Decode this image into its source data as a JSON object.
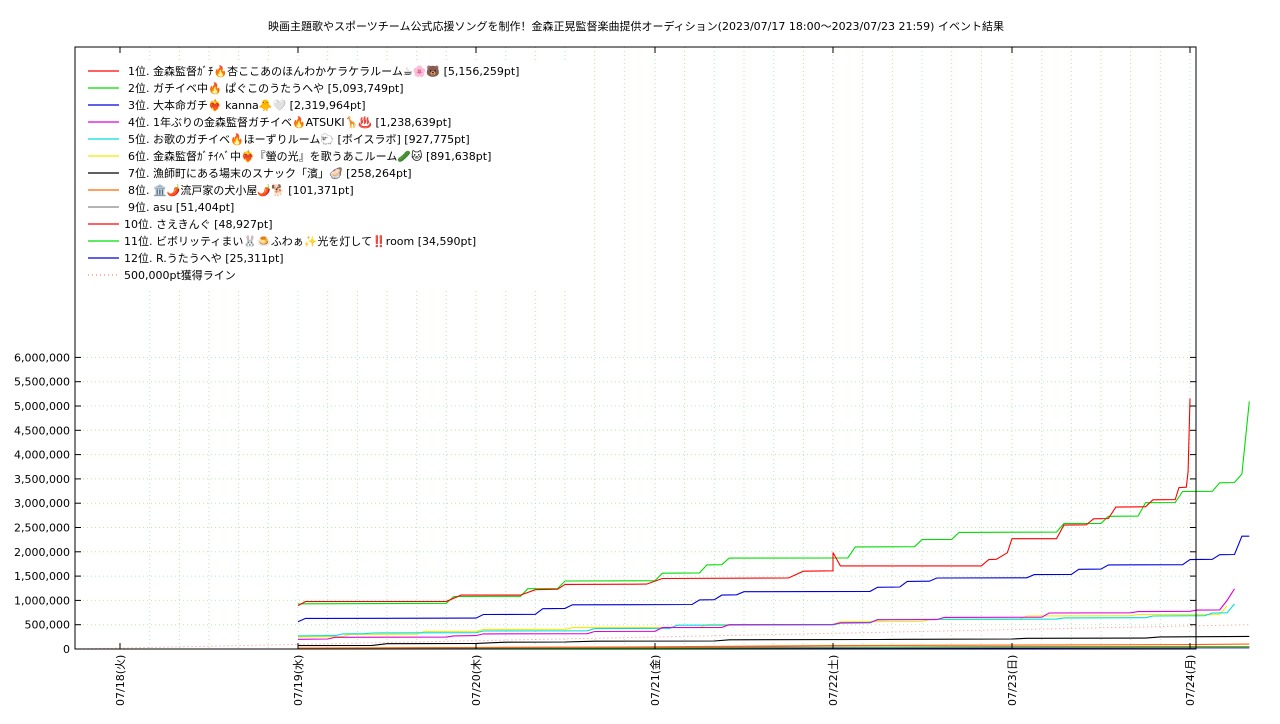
{
  "chart_data": {
    "type": "line",
    "title": "映画主題歌やスポーツチーム公式応援ソングを制作！金森正晃監督楽曲提供オーディション(2023/07/17 18:00～2023/07/23 21:59)",
    "subtitle": "イベント結果",
    "xlabel": "",
    "ylabel": "",
    "xlim": [
      "2023-07-17 18:00",
      "2023-07-24 02:00"
    ],
    "ylim": [
      0,
      6200000
    ],
    "x_ticks": [
      "07/18(火)",
      "07/19(水)",
      "07/20(木)",
      "07/21(金)",
      "07/22(土)",
      "07/23(日)",
      "07/24(月)"
    ],
    "y_ticks": [
      "0",
      "500,000",
      "1,000,000",
      "1,500,000",
      "2,000,000",
      "2,500,000",
      "3,000,000",
      "3,500,000",
      "4,000,000",
      "4,500,000",
      "5,000,000",
      "5,500,000",
      "6,000,000"
    ],
    "grid": true,
    "legend_position": "top-left",
    "series": [
      {
        "name": "1位. 金森監督ｶﾞﾁ🔥杏ここあのほんわかケラケラルーム☕🌸🐻 [5,156,259pt]",
        "color": "#ff0000",
        "points": [
          [
            "07/19 00:00",
            890000
          ],
          [
            "07/19 01:00",
            975000
          ],
          [
            "07/19 20:00",
            980000
          ],
          [
            "07/19 22:00",
            1110000
          ],
          [
            "07/20 06:00",
            1110000
          ],
          [
            "07/20 08:00",
            1220000
          ],
          [
            "07/20 11:00",
            1230000
          ],
          [
            "07/20 12:00",
            1330000
          ],
          [
            "07/20 23:00",
            1335000
          ],
          [
            "07/21 01:00",
            1450000
          ],
          [
            "07/21 18:00",
            1460000
          ],
          [
            "07/21 20:00",
            1600000
          ],
          [
            "07/22 00:00",
            1610000
          ],
          [
            "07/22 01:00",
            1710000
          ],
          [
            "07/22 20:00",
            1710000
          ],
          [
            "07/22 21:00",
            1840000
          ],
          [
            "07/22 22:00",
            1845000
          ],
          [
            "07/22 23:30",
            1980000
          ],
          [
            "07/22 00:00",
            1985000
          ],
          [
            "07/23 00:00",
            2270000
          ],
          [
            "07/23 06:00",
            2270000
          ],
          [
            "07/23 07:00",
            2550000
          ],
          [
            "07/23 10:00",
            2555000
          ],
          [
            "07/23 11:00",
            2680000
          ],
          [
            "07/23 13:00",
            2685000
          ],
          [
            "07/23 14:00",
            2920000
          ],
          [
            "07/23 18:00",
            2925000
          ],
          [
            "07/23 19:00",
            3070000
          ],
          [
            "07/23 22:00",
            3075000
          ],
          [
            "07/23 22:30",
            3320000
          ],
          [
            "07/23 23:30",
            3330000
          ],
          [
            "07/23 23:45",
            3650000
          ],
          [
            "07/24 00:00",
            5156259
          ]
        ]
      },
      {
        "name": "2位. ガチイベ中🔥 ぱぐこのうたうへや [5,093,749pt]",
        "color": "#00dd00",
        "points": [
          [
            "07/19 00:00",
            925000
          ],
          [
            "07/19 01:00",
            930000
          ],
          [
            "07/19 20:00",
            940000
          ],
          [
            "07/19 21:00",
            1080000
          ],
          [
            "07/20 06:00",
            1085000
          ],
          [
            "07/20 07:00",
            1240000
          ],
          [
            "07/20 11:00",
            1245000
          ],
          [
            "07/20 12:00",
            1400000
          ],
          [
            "07/21 00:00",
            1405000
          ],
          [
            "07/21 01:00",
            1560000
          ],
          [
            "07/21 06:00",
            1565000
          ],
          [
            "07/21 07:00",
            1730000
          ],
          [
            "07/21 09:00",
            1735000
          ],
          [
            "07/21 10:00",
            1870000
          ],
          [
            "07/22 02:00",
            1875000
          ],
          [
            "07/22 03:00",
            2100000
          ],
          [
            "07/22 11:00",
            2105000
          ],
          [
            "07/22 12:00",
            2250000
          ],
          [
            "07/22 16:00",
            2255000
          ],
          [
            "07/22 17:00",
            2400000
          ],
          [
            "07/23 06:00",
            2405000
          ],
          [
            "07/23 07:00",
            2580000
          ],
          [
            "07/23 12:00",
            2585000
          ],
          [
            "07/23 13:00",
            2730000
          ],
          [
            "07/23 17:00",
            2735000
          ],
          [
            "07/23 18:00",
            3010000
          ],
          [
            "07/23 22:00",
            3015000
          ],
          [
            "07/23 23:00",
            3240000
          ],
          [
            "07/24 03:00",
            3245000
          ],
          [
            "07/24 04:00",
            3420000
          ],
          [
            "07/24 06:00",
            3425000
          ],
          [
            "07/24 07:00",
            3600000
          ],
          [
            "07/24 08:00",
            5093749
          ]
        ]
      },
      {
        "name": "3位. 大本命ガチ❤️‍🔥 kanna🐥🤍 [2,319,964pt]",
        "color": "#0000dd",
        "points": [
          [
            "07/19 00:00",
            560000
          ],
          [
            "07/19 01:00",
            630000
          ],
          [
            "07/20 00:00",
            635000
          ],
          [
            "07/20 01:00",
            710000
          ],
          [
            "07/20 08:00",
            715000
          ],
          [
            "07/20 09:00",
            830000
          ],
          [
            "07/20 12:00",
            835000
          ],
          [
            "07/20 13:00",
            910000
          ],
          [
            "07/21 05:00",
            915000
          ],
          [
            "07/21 06:00",
            1010000
          ],
          [
            "07/21 08:00",
            1015000
          ],
          [
            "07/21 09:00",
            1110000
          ],
          [
            "07/21 11:00",
            1115000
          ],
          [
            "07/21 12:00",
            1180000
          ],
          [
            "07/22 05:00",
            1185000
          ],
          [
            "07/22 06:00",
            1270000
          ],
          [
            "07/22 09:00",
            1275000
          ],
          [
            "07/22 10:00",
            1390000
          ],
          [
            "07/22 13:00",
            1395000
          ],
          [
            "07/22 14:00",
            1460000
          ],
          [
            "07/23 02:00",
            1465000
          ],
          [
            "07/23 03:00",
            1530000
          ],
          [
            "07/23 08:00",
            1535000
          ],
          [
            "07/23 09:00",
            1640000
          ],
          [
            "07/23 12:00",
            1645000
          ],
          [
            "07/23 13:00",
            1730000
          ],
          [
            "07/23 23:00",
            1735000
          ],
          [
            "07/24 00:00",
            1840000
          ],
          [
            "07/24 03:00",
            1845000
          ],
          [
            "07/24 04:00",
            1940000
          ],
          [
            "07/24 06:00",
            1945000
          ],
          [
            "07/24 07:00",
            2320000
          ],
          [
            "07/24 08:00",
            2319964
          ]
        ]
      },
      {
        "name": "4位. 1年ぶりの金森監督ガチイベ🔥ATSUKI🦒♨️ [1,238,639pt]",
        "color": "#dd00dd",
        "points": [
          [
            "07/19 00:00",
            200000
          ],
          [
            "07/19 04:00",
            205000
          ],
          [
            "07/19 05:00",
            240000
          ],
          [
            "07/19 20:00",
            245000
          ],
          [
            "07/19 21:00",
            270000
          ],
          [
            "07/20 00:00",
            275000
          ],
          [
            "07/20 01:00",
            310000
          ],
          [
            "07/20 15:00",
            315000
          ],
          [
            "07/20 16:00",
            360000
          ],
          [
            "07/21 00:00",
            365000
          ],
          [
            "07/21 01:00",
            440000
          ],
          [
            "07/21 09:00",
            445000
          ],
          [
            "07/21 10:00",
            500000
          ],
          [
            "07/22 00:00",
            505000
          ],
          [
            "07/22 01:00",
            540000
          ],
          [
            "07/22 05:00",
            545000
          ],
          [
            "07/22 06:00",
            600000
          ],
          [
            "07/22 14:00",
            605000
          ],
          [
            "07/22 15:00",
            650000
          ],
          [
            "07/23 04:00",
            655000
          ],
          [
            "07/23 05:00",
            740000
          ],
          [
            "07/23 16:00",
            745000
          ],
          [
            "07/23 17:00",
            770000
          ],
          [
            "07/24 00:00",
            775000
          ],
          [
            "07/24 01:00",
            800000
          ],
          [
            "07/24 04:00",
            805000
          ],
          [
            "07/24 05:00",
            1000000
          ],
          [
            "07/24 06:00",
            1238639
          ]
        ]
      },
      {
        "name": "5位. お歌のガチイベ🔥ほーずりルーム🐑 [ボイスラボ] [927,775pt]",
        "color": "#00dddd",
        "points": [
          [
            "07/19 00:00",
            270000
          ],
          [
            "07/19 05:00",
            275000
          ],
          [
            "07/19 06:00",
            310000
          ],
          [
            "07/19 09:00",
            315000
          ],
          [
            "07/19 10:00",
            330000
          ],
          [
            "07/20 00:00",
            335000
          ],
          [
            "07/20 01:00",
            370000
          ],
          [
            "07/20 15:00",
            375000
          ],
          [
            "07/20 16:00",
            420000
          ],
          [
            "07/21 02:00",
            425000
          ],
          [
            "07/21 03:00",
            490000
          ],
          [
            "07/22 00:00",
            495000
          ],
          [
            "07/22 01:00",
            530000
          ],
          [
            "07/22 05:00",
            535000
          ],
          [
            "07/22 06:00",
            610000
          ],
          [
            "07/23 06:00",
            615000
          ],
          [
            "07/23 07:00",
            640000
          ],
          [
            "07/23 18:00",
            645000
          ],
          [
            "07/23 19:00",
            680000
          ],
          [
            "07/24 02:00",
            685000
          ],
          [
            "07/24 03:00",
            740000
          ],
          [
            "07/24 05:00",
            745000
          ],
          [
            "07/24 06:00",
            927775
          ]
        ]
      },
      {
        "name": "6位. 金森監督ｶﾞﾁｲﾍﾞ中❤️‍🔥『螢の光』を歌うあこルーム🥒🐱 [891,638pt]",
        "color": "#eeee00",
        "points": [
          [
            "07/19 00:00",
            250000
          ],
          [
            "07/19 06:00",
            255000
          ],
          [
            "07/19 07:00",
            300000
          ],
          [
            "07/19 16:00",
            305000
          ],
          [
            "07/19 17:00",
            360000
          ],
          [
            "07/20 00:00",
            365000
          ],
          [
            "07/20 01:00",
            400000
          ],
          [
            "07/20 12:00",
            405000
          ],
          [
            "07/20 13:00",
            440000
          ],
          [
            "07/21 06:00",
            445000
          ],
          [
            "07/21 07:00",
            500000
          ],
          [
            "07/22 00:00",
            505000
          ],
          [
            "07/22 01:00",
            560000
          ],
          [
            "07/22 12:00",
            565000
          ],
          [
            "07/22 13:00",
            610000
          ],
          [
            "07/23 01:00",
            615000
          ],
          [
            "07/23 02:00",
            680000
          ],
          [
            "07/23 16:00",
            685000
          ],
          [
            "07/23 17:00",
            710000
          ],
          [
            "07/24 04:00",
            715000
          ],
          [
            "07/24 05:00",
            891638
          ]
        ]
      },
      {
        "name": "7位. 漁師町にある場末のスナック「濱」🦪 [258,264pt]",
        "color": "#000000",
        "points": [
          [
            "07/19 00:00",
            70000
          ],
          [
            "07/19 10:00",
            75000
          ],
          [
            "07/19 12:00",
            110000
          ],
          [
            "07/20 00:00",
            115000
          ],
          [
            "07/20 04:00",
            140000
          ],
          [
            "07/20 12:00",
            145000
          ],
          [
            "07/20 16:00",
            160000
          ],
          [
            "07/21 08:00",
            165000
          ],
          [
            "07/21 10:00",
            190000
          ],
          [
            "07/22 06:00",
            195000
          ],
          [
            "07/22 10:00",
            200000
          ],
          [
            "07/23 00:00",
            205000
          ],
          [
            "07/23 02:00",
            220000
          ],
          [
            "07/23 18:00",
            225000
          ],
          [
            "07/23 20:00",
            250000
          ],
          [
            "07/24 08:00",
            258264
          ]
        ]
      },
      {
        "name": "8位. 🏛️🌶️流戸家の犬小屋🌶️🐕 [101,371pt]",
        "color": "#ff6600",
        "points": [
          [
            "07/19 00:00",
            20000
          ],
          [
            "07/20 00:00",
            30000
          ],
          [
            "07/21 00:00",
            45000
          ],
          [
            "07/22 00:00",
            70000
          ],
          [
            "07/23 00:00",
            80000
          ],
          [
            "07/24 00:00",
            90000
          ],
          [
            "07/24 08:00",
            101371
          ]
        ]
      },
      {
        "name": "9位. asu [51,404pt]",
        "color": "#888888",
        "points": [
          [
            "07/19 00:00",
            5000
          ],
          [
            "07/20 00:00",
            25000
          ],
          [
            "07/21 00:00",
            35000
          ],
          [
            "07/22 00:00",
            40000
          ],
          [
            "07/23 00:00",
            45000
          ],
          [
            "07/24 08:00",
            51404
          ]
        ]
      },
      {
        "name": "10位. さえきんぐ [48,927pt]",
        "color": "#ff0000",
        "points": [
          [
            "07/19 00:00",
            8000
          ],
          [
            "07/20 00:00",
            30000
          ],
          [
            "07/21 00:00",
            35000
          ],
          [
            "07/22 00:00",
            40000
          ],
          [
            "07/23 00:00",
            45000
          ],
          [
            "07/24 08:00",
            48927
          ]
        ]
      },
      {
        "name": "11位. ビボリッティまい🐰🍮ふわぁ✨光を灯して‼️room [34,590pt]",
        "color": "#00dd00",
        "points": [
          [
            "07/19 00:00",
            3000
          ],
          [
            "07/20 00:00",
            15000
          ],
          [
            "07/21 00:00",
            22000
          ],
          [
            "07/22 00:00",
            28000
          ],
          [
            "07/23 00:00",
            31000
          ],
          [
            "07/24 08:00",
            34590
          ]
        ]
      },
      {
        "name": "12位. R.うたうへや [25,311pt]",
        "color": "#0000dd",
        "points": [
          [
            "07/19 00:00",
            2000
          ],
          [
            "07/20 00:00",
            10000
          ],
          [
            "07/21 00:00",
            15000
          ],
          [
            "07/22 00:00",
            20000
          ],
          [
            "07/23 00:00",
            23000
          ],
          [
            "07/24 08:00",
            25311
          ]
        ]
      }
    ],
    "reference_line": {
      "name": "500,000pt獲得ライン",
      "color": "#ff8888",
      "start": [
        "07/17 18:00",
        0
      ],
      "end": [
        "07/24 08:00",
        500000
      ]
    }
  }
}
